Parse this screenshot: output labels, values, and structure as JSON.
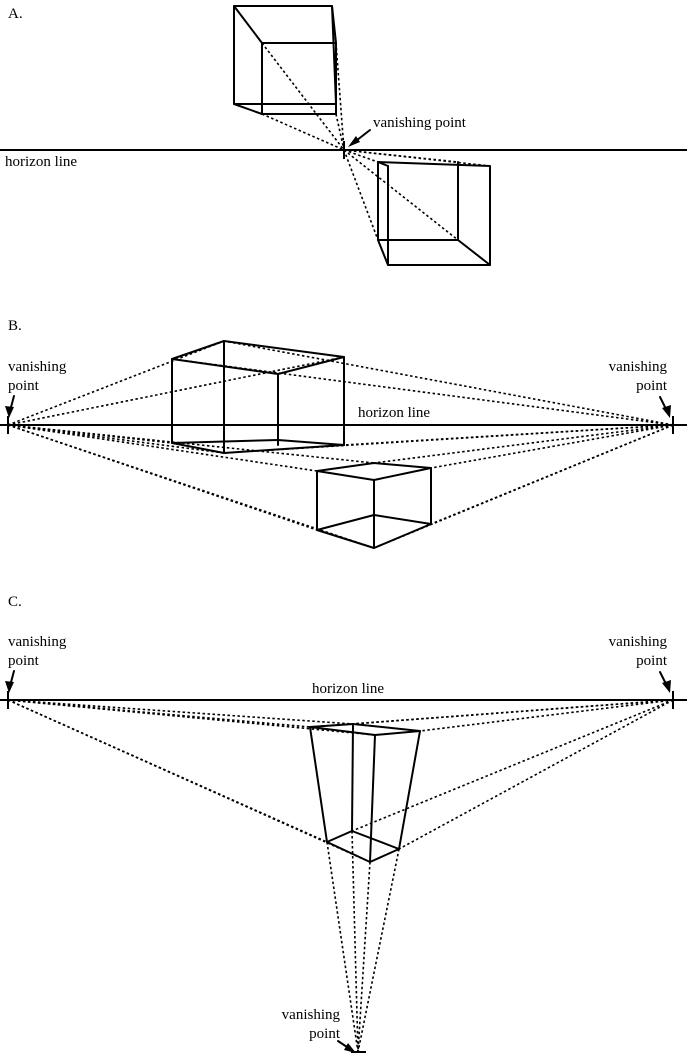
{
  "sections": {
    "a": {
      "letter": "A.",
      "horizon_label": "horizon line",
      "vp_label": "vanishing point"
    },
    "b": {
      "letter": "B.",
      "horizon_label": "horizon line",
      "vp_left_label_1": "vanishing",
      "vp_left_label_2": "point",
      "vp_right_label_1": "vanishing",
      "vp_right_label_2": "point"
    },
    "c": {
      "letter": "C.",
      "horizon_label": "horizon line",
      "vp_left_label_1": "vanishing",
      "vp_left_label_2": "point",
      "vp_right_label_1": "vanishing",
      "vp_right_label_2": "point",
      "vp_bottom_label_1": "vanishing",
      "vp_bottom_label_2": "point"
    }
  },
  "style": {
    "ink": "#000000",
    "background": "#ffffff"
  }
}
